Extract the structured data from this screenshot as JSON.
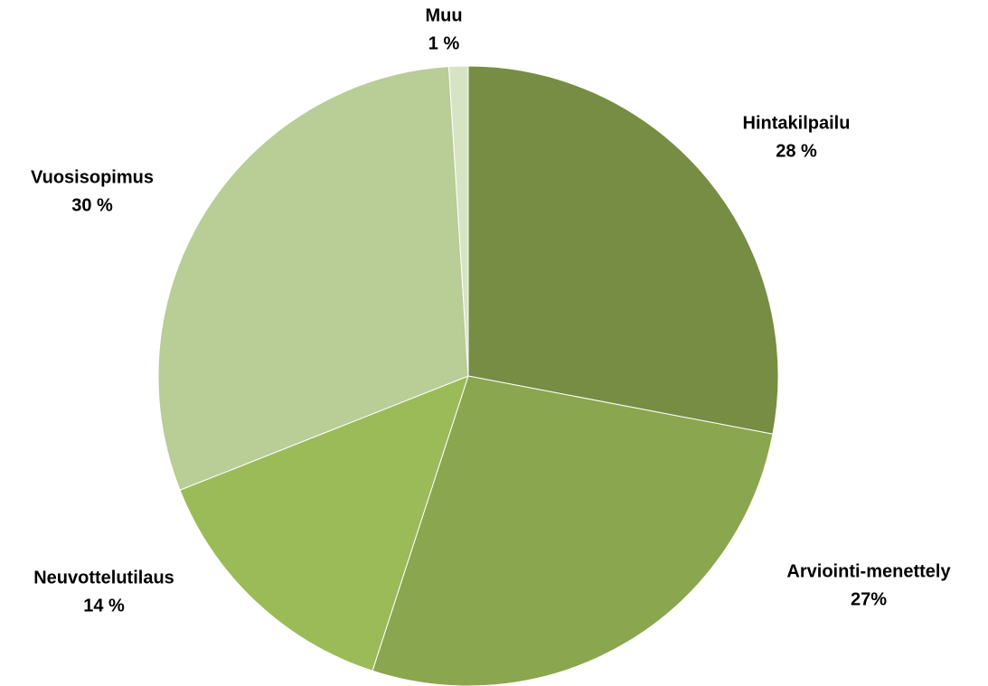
{
  "chart_data": {
    "type": "pie",
    "categories": [
      "Hintakilpailu",
      "Arviointi-menettely",
      "Neuvottelutilaus",
      "Vuosisopimus",
      "Muu"
    ],
    "values": [
      28,
      27,
      14,
      30,
      1
    ],
    "value_labels": [
      "28 %",
      "27%",
      "14 %",
      "30 %",
      "1 %"
    ],
    "colors": [
      "#768d43",
      "#8aa64f",
      "#9bbb59",
      "#b9cd96",
      "#d7e4c4"
    ]
  }
}
